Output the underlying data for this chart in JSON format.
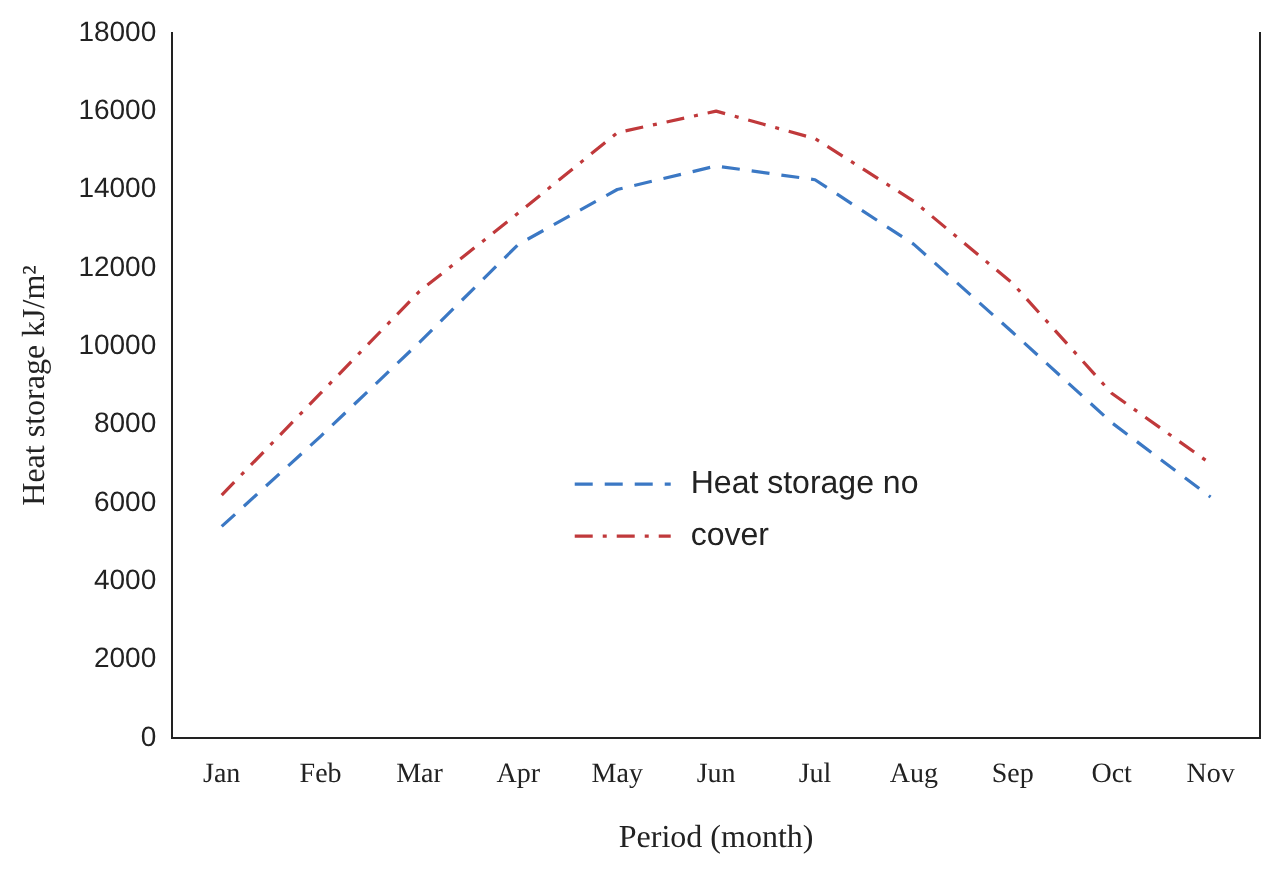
{
  "chart_data": {
    "type": "line",
    "xlabel": "Period (month)",
    "ylabel": "Heat storage kJ/m²",
    "categories": [
      "Jan",
      "Feb",
      "Mar",
      "Apr",
      "May",
      "Jun",
      "Jul",
      "Aug",
      "Sep",
      "Oct",
      "Nov"
    ],
    "series": [
      {
        "name": "Heat storage no",
        "color": "#3b78c4",
        "line_style": "dashed",
        "values": [
          5400,
          7700,
          10100,
          12600,
          14000,
          14600,
          14250,
          12600,
          10350,
          8050,
          6150
        ]
      },
      {
        "name": "cover",
        "color": "#c0393b",
        "line_style": "dashdot",
        "values": [
          6200,
          8800,
          11400,
          13400,
          15450,
          16000,
          15300,
          13700,
          11600,
          8800,
          7000
        ]
      }
    ],
    "ylim": [
      0,
      18000
    ],
    "yticks": [
      0,
      2000,
      4000,
      6000,
      8000,
      10000,
      12000,
      14000,
      16000,
      18000
    ],
    "grid": false,
    "legend": "bottom",
    "marker": "none"
  }
}
